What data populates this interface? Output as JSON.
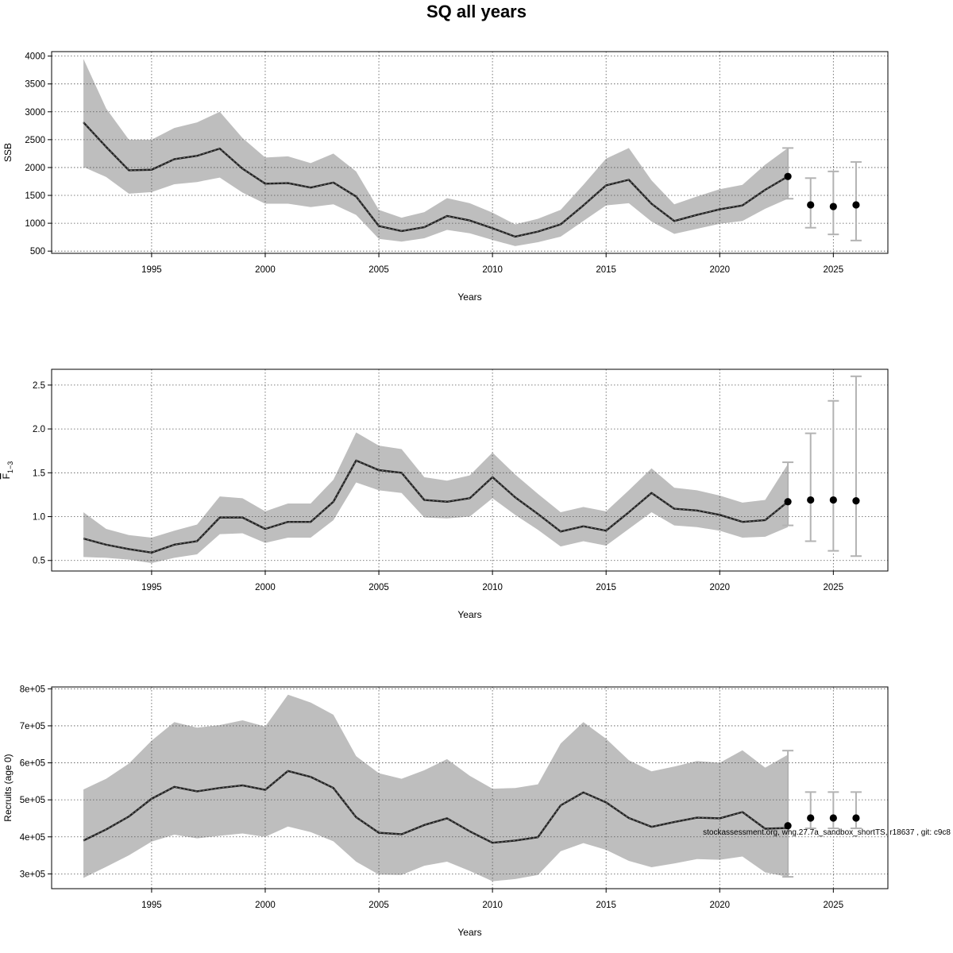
{
  "title": "SQ all years",
  "credit": "stockassessment.org, whg.27.7a_sandbox_shortTS, r18637 , git: c9c8",
  "colors": {
    "band": "#bebebe",
    "line": "#222222",
    "error_bar": "#b3b3b3",
    "point": "#000000",
    "grid": "#555555"
  },
  "chart_data": [
    {
      "type": "line",
      "id": "ssb",
      "ylabel": "SSB",
      "xlabel": "Years",
      "xlim": [
        1990.6,
        2027.4
      ],
      "ylim": [
        460,
        4080
      ],
      "xticks": [
        1995,
        2000,
        2005,
        2010,
        2015,
        2020,
        2025
      ],
      "yticks": [
        500,
        1000,
        1500,
        2000,
        2500,
        3000,
        3500,
        4000
      ],
      "ytick_labels": [
        "500",
        "1000",
        "1500",
        "2000",
        "2500",
        "3000",
        "3500",
        "4000"
      ],
      "grid": true,
      "x": [
        1992,
        1993,
        1994,
        1995,
        1996,
        1997,
        1998,
        1999,
        2000,
        2001,
        2002,
        2003,
        2004,
        2005,
        2006,
        2007,
        2008,
        2009,
        2010,
        2011,
        2012,
        2013,
        2014,
        2015,
        2016,
        2017,
        2018,
        2019,
        2020,
        2021,
        2022,
        2023
      ],
      "estimate": [
        2810,
        2370,
        1950,
        1960,
        2150,
        2210,
        2340,
        1980,
        1710,
        1720,
        1640,
        1730,
        1480,
        950,
        860,
        930,
        1130,
        1050,
        910,
        760,
        850,
        980,
        1320,
        1680,
        1780,
        1350,
        1040,
        1150,
        1250,
        1320,
        1600,
        1840
      ],
      "lower": [
        2010,
        1830,
        1530,
        1560,
        1700,
        1740,
        1820,
        1550,
        1350,
        1350,
        1290,
        1340,
        1150,
        720,
        670,
        730,
        880,
        820,
        700,
        590,
        660,
        760,
        1040,
        1320,
        1360,
        1030,
        810,
        900,
        990,
        1040,
        1260,
        1440
      ],
      "upper": [
        3950,
        3060,
        2500,
        2500,
        2710,
        2810,
        3000,
        2530,
        2180,
        2200,
        2080,
        2250,
        1930,
        1240,
        1100,
        1200,
        1450,
        1360,
        1190,
        980,
        1080,
        1240,
        1690,
        2160,
        2350,
        1770,
        1340,
        1480,
        1610,
        1690,
        2050,
        2350
      ],
      "projection": [
        {
          "year": 2023,
          "value": 1840,
          "low": 1440,
          "high": 2350
        },
        {
          "year": 2024,
          "value": 1330,
          "low": 920,
          "high": 1810
        },
        {
          "year": 2025,
          "value": 1300,
          "low": 800,
          "high": 1930
        },
        {
          "year": 2026,
          "value": 1330,
          "low": 690,
          "high": 2100
        }
      ]
    },
    {
      "type": "line",
      "id": "fbar",
      "ylabel": "F",
      "ylabel_sub": "1−3",
      "xlabel": "Years",
      "xlim": [
        1990.6,
        2027.4
      ],
      "ylim": [
        0.38,
        2.68
      ],
      "xticks": [
        1995,
        2000,
        2005,
        2010,
        2015,
        2020,
        2025
      ],
      "yticks": [
        0.5,
        1.0,
        1.5,
        2.0,
        2.5
      ],
      "ytick_labels": [
        "0.5",
        "1.0",
        "1.5",
        "2.0",
        "2.5"
      ],
      "grid": true,
      "x": [
        1992,
        1993,
        1994,
        1995,
        1996,
        1997,
        1998,
        1999,
        2000,
        2001,
        2002,
        2003,
        2004,
        2005,
        2006,
        2007,
        2008,
        2009,
        2010,
        2011,
        2012,
        2013,
        2014,
        2015,
        2016,
        2017,
        2018,
        2019,
        2020,
        2021,
        2022,
        2023
      ],
      "estimate": [
        0.75,
        0.68,
        0.63,
        0.59,
        0.68,
        0.72,
        0.99,
        0.99,
        0.86,
        0.94,
        0.94,
        1.17,
        1.64,
        1.53,
        1.5,
        1.19,
        1.17,
        1.21,
        1.45,
        1.22,
        1.03,
        0.83,
        0.89,
        0.84,
        1.05,
        1.27,
        1.09,
        1.07,
        1.02,
        0.94,
        0.96,
        1.17
      ],
      "lower": [
        0.54,
        0.53,
        0.51,
        0.47,
        0.53,
        0.57,
        0.8,
        0.81,
        0.7,
        0.76,
        0.76,
        0.96,
        1.39,
        1.3,
        1.27,
        0.99,
        0.98,
        1.0,
        1.21,
        1.02,
        0.85,
        0.66,
        0.72,
        0.67,
        0.86,
        1.05,
        0.9,
        0.88,
        0.84,
        0.76,
        0.77,
        0.88
      ],
      "upper": [
        1.05,
        0.86,
        0.79,
        0.76,
        0.84,
        0.91,
        1.23,
        1.21,
        1.06,
        1.15,
        1.15,
        1.42,
        1.96,
        1.81,
        1.77,
        1.45,
        1.41,
        1.47,
        1.73,
        1.48,
        1.26,
        1.05,
        1.11,
        1.06,
        1.3,
        1.55,
        1.33,
        1.3,
        1.24,
        1.16,
        1.19,
        1.6
      ],
      "projection": [
        {
          "year": 2023,
          "value": 1.17,
          "low": 0.9,
          "high": 1.62
        },
        {
          "year": 2024,
          "value": 1.19,
          "low": 0.72,
          "high": 1.95
        },
        {
          "year": 2025,
          "value": 1.19,
          "low": 0.61,
          "high": 2.32
        },
        {
          "year": 2026,
          "value": 1.18,
          "low": 0.55,
          "high": 2.6
        }
      ]
    },
    {
      "type": "line",
      "id": "recruits",
      "ylabel": "Recruits (age 0)",
      "xlabel": "Years",
      "xlim": [
        1990.6,
        2027.4
      ],
      "ylim": [
        260000,
        805000
      ],
      "xticks": [
        1995,
        2000,
        2005,
        2010,
        2015,
        2020,
        2025
      ],
      "yticks": [
        300000,
        400000,
        500000,
        600000,
        700000,
        800000
      ],
      "ytick_labels": [
        "3e+05",
        "4e+05",
        "5e+05",
        "6e+05",
        "7e+05",
        "8e+05"
      ],
      "grid": true,
      "x": [
        1992,
        1993,
        1994,
        1995,
        1996,
        1997,
        1998,
        1999,
        2000,
        2001,
        2002,
        2003,
        2004,
        2005,
        2006,
        2007,
        2008,
        2009,
        2010,
        2011,
        2012,
        2013,
        2014,
        2015,
        2016,
        2017,
        2018,
        2019,
        2020,
        2021,
        2022,
        2023
      ],
      "estimate": [
        390000,
        420000,
        455000,
        503000,
        535000,
        523000,
        532000,
        539000,
        527000,
        578000,
        562000,
        532000,
        453000,
        411000,
        407000,
        432000,
        450000,
        415000,
        384000,
        390000,
        399000,
        485000,
        520000,
        493000,
        451000,
        427000,
        440000,
        452000,
        450000,
        467000,
        422000,
        424000
      ],
      "lower": [
        289000,
        319000,
        350000,
        387000,
        406000,
        396000,
        403000,
        409000,
        400000,
        428000,
        413000,
        388000,
        333000,
        298000,
        297000,
        322000,
        333000,
        308000,
        280000,
        286000,
        297000,
        361000,
        383000,
        365000,
        335000,
        318000,
        328000,
        340000,
        338000,
        347000,
        304000,
        292000
      ],
      "upper": [
        528000,
        557000,
        598000,
        660000,
        710000,
        695000,
        702000,
        715000,
        698000,
        784000,
        763000,
        730000,
        618000,
        572000,
        557000,
        580000,
        610000,
        565000,
        530000,
        532000,
        542000,
        652000,
        710000,
        665000,
        607000,
        577000,
        590000,
        605000,
        600000,
        634000,
        587000,
        622000
      ],
      "projection": [
        {
          "year": 2023,
          "value": 430000,
          "low": 292000,
          "high": 633000
        },
        {
          "year": 2024,
          "value": 451000,
          "low": 423000,
          "high": 521000
        },
        {
          "year": 2025,
          "value": 451000,
          "low": 423000,
          "high": 521000
        },
        {
          "year": 2026,
          "value": 451000,
          "low": 423000,
          "high": 521000
        }
      ]
    }
  ]
}
